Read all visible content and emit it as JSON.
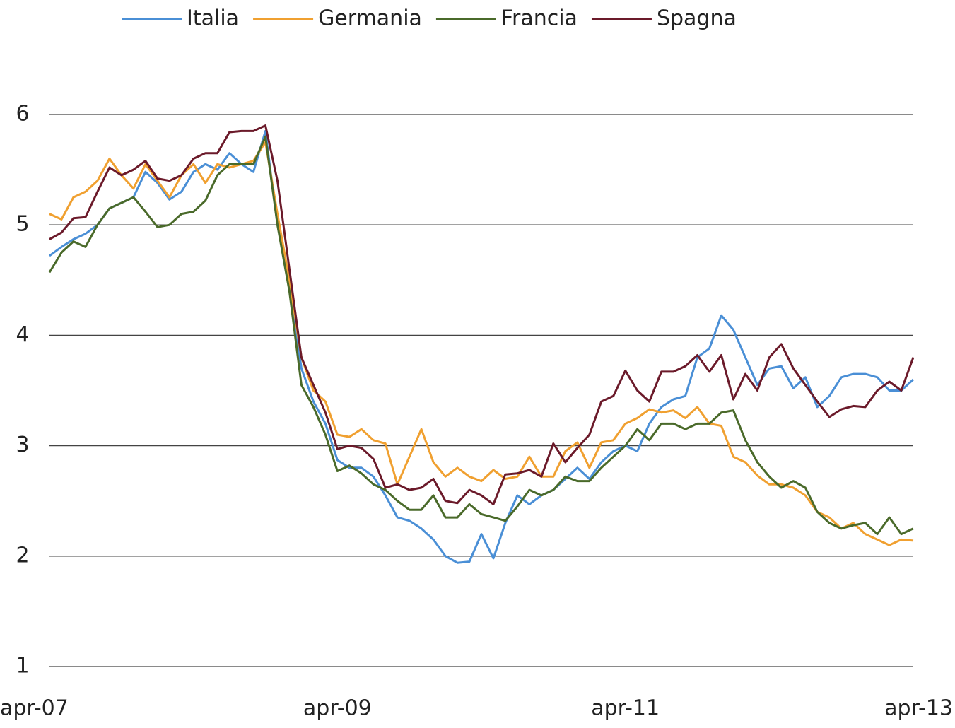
{
  "chart_data": {
    "type": "line",
    "categories": [
      "apr-07",
      null,
      null,
      null,
      null,
      null,
      null,
      null,
      null,
      null,
      null,
      null,
      null,
      null,
      null,
      null,
      null,
      null,
      null,
      null,
      null,
      null,
      null,
      null,
      "apr-09",
      null,
      null,
      null,
      null,
      null,
      null,
      null,
      null,
      null,
      null,
      null,
      null,
      null,
      null,
      null,
      null,
      null,
      null,
      null,
      null,
      null,
      null,
      null,
      "apr-11",
      null,
      null,
      null,
      null,
      null,
      null,
      null,
      null,
      null,
      null,
      null,
      null,
      null,
      null,
      null,
      null,
      null,
      null,
      null,
      null,
      null,
      null,
      null,
      "apr-13"
    ],
    "series": [
      {
        "name": "Italia",
        "color": "#4a8fd6",
        "values": [
          4.72,
          4.8,
          4.87,
          4.92,
          5.0,
          5.15,
          5.2,
          5.25,
          5.48,
          5.38,
          5.23,
          5.3,
          5.48,
          5.55,
          5.5,
          5.65,
          5.55,
          5.48,
          5.85,
          5.0,
          4.5,
          3.7,
          3.4,
          3.2,
          2.87,
          2.8,
          2.8,
          2.72,
          2.55,
          2.35,
          2.32,
          2.25,
          2.15,
          2.0,
          1.94,
          1.95,
          2.2,
          1.98,
          2.3,
          2.55,
          2.47,
          2.55,
          2.6,
          2.7,
          2.8,
          2.7,
          2.85,
          2.95,
          3.0,
          2.95,
          3.2,
          3.35,
          3.42,
          3.45,
          3.8,
          3.88,
          4.18,
          4.05,
          3.8,
          3.55,
          3.7,
          3.72,
          3.52,
          3.62,
          3.35,
          3.45,
          3.62,
          3.65,
          3.65,
          3.62,
          3.5,
          3.5,
          3.6
        ]
      },
      {
        "name": "Germania",
        "color": "#f0a030",
        "values": [
          5.1,
          5.05,
          5.25,
          5.3,
          5.4,
          5.6,
          5.45,
          5.33,
          5.55,
          5.4,
          5.25,
          5.45,
          5.55,
          5.38,
          5.55,
          5.52,
          5.55,
          5.58,
          5.75,
          5.1,
          4.5,
          3.8,
          3.5,
          3.4,
          3.1,
          3.08,
          3.15,
          3.05,
          3.02,
          2.65,
          2.9,
          3.15,
          2.85,
          2.72,
          2.8,
          2.72,
          2.68,
          2.78,
          2.7,
          2.72,
          2.9,
          2.72,
          2.72,
          2.95,
          3.03,
          2.8,
          3.03,
          3.05,
          3.2,
          3.25,
          3.33,
          3.3,
          3.32,
          3.25,
          3.35,
          3.2,
          3.18,
          2.9,
          2.85,
          2.73,
          2.65,
          2.65,
          2.62,
          2.55,
          2.4,
          2.35,
          2.25,
          2.3,
          2.2,
          2.15,
          2.1,
          2.15,
          2.14
        ]
      },
      {
        "name": "Francia",
        "color": "#4a6a2a",
        "values": [
          4.57,
          4.75,
          4.85,
          4.8,
          5.0,
          5.15,
          5.2,
          5.25,
          5.12,
          4.98,
          5.0,
          5.1,
          5.12,
          5.22,
          5.45,
          5.55,
          5.55,
          5.55,
          5.8,
          5.0,
          4.4,
          3.55,
          3.35,
          3.1,
          2.77,
          2.82,
          2.75,
          2.65,
          2.6,
          2.5,
          2.42,
          2.42,
          2.55,
          2.35,
          2.35,
          2.47,
          2.38,
          2.35,
          2.32,
          2.45,
          2.6,
          2.55,
          2.6,
          2.72,
          2.68,
          2.68,
          2.8,
          2.9,
          3.0,
          3.15,
          3.05,
          3.2,
          3.2,
          3.15,
          3.2,
          3.2,
          3.3,
          3.32,
          3.05,
          2.85,
          2.72,
          2.62,
          2.68,
          2.62,
          2.4,
          2.3,
          2.25,
          2.28,
          2.3,
          2.2,
          2.35,
          2.2,
          2.25
        ]
      },
      {
        "name": "Spagna",
        "color": "#6b1a2a",
        "values": [
          4.87,
          4.93,
          5.06,
          5.07,
          5.3,
          5.52,
          5.45,
          5.5,
          5.58,
          5.42,
          5.4,
          5.45,
          5.6,
          5.65,
          5.65,
          5.84,
          5.85,
          5.85,
          5.9,
          5.4,
          4.6,
          3.8,
          3.55,
          3.3,
          2.97,
          3.0,
          2.98,
          2.88,
          2.62,
          2.65,
          2.6,
          2.62,
          2.7,
          2.5,
          2.48,
          2.6,
          2.55,
          2.47,
          2.74,
          2.75,
          2.78,
          2.72,
          3.02,
          2.85,
          2.98,
          3.1,
          3.4,
          3.45,
          3.68,
          3.5,
          3.4,
          3.67,
          3.67,
          3.72,
          3.82,
          3.67,
          3.82,
          3.42,
          3.65,
          3.5,
          3.8,
          3.92,
          3.7,
          3.55,
          3.4,
          3.26,
          3.33,
          3.36,
          3.35,
          3.5,
          3.58,
          3.5,
          3.8
        ]
      }
    ],
    "ylim": [
      1,
      6
    ],
    "yticks": [
      1,
      2,
      3,
      4,
      5,
      6
    ],
    "grid": true
  }
}
